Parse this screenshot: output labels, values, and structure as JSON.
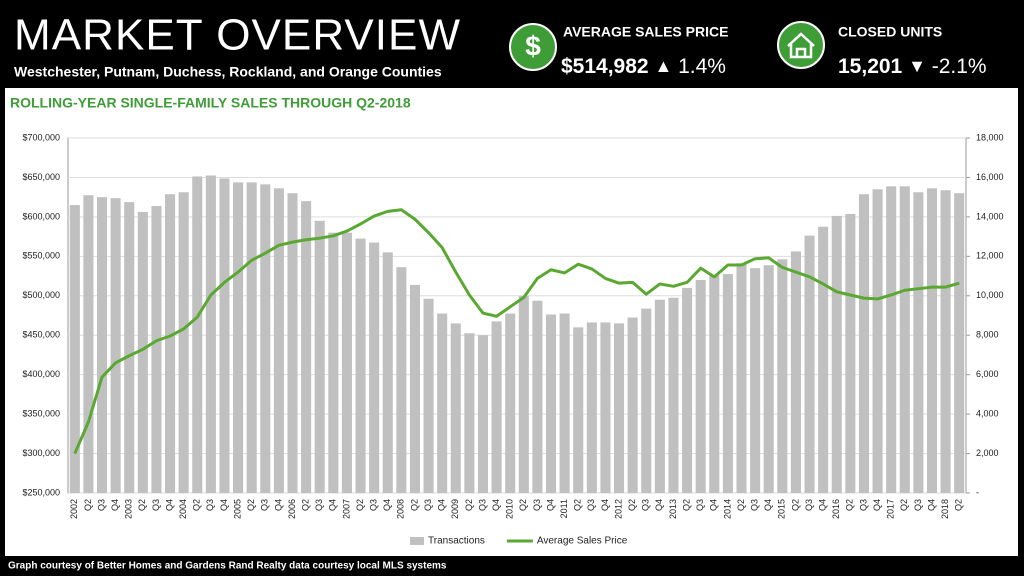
{
  "header": {
    "title": "MARKET OVERVIEW",
    "subtitle": "Westchester, Putnam, Duchess, Rockland, and Orange Counties",
    "stats": [
      {
        "icon": "$",
        "label": "AVERAGE SALES PRICE",
        "value": "$514,982",
        "arrow": "▲",
        "change": "1.4%"
      },
      {
        "label": "CLOSED UNITS",
        "value": "15,201",
        "arrow": "▼",
        "change": "-2.1%"
      }
    ]
  },
  "footer": "Graph courtesy of Better Homes and Gardens Rand Realty data courtesy local MLS systems",
  "chart_data": {
    "type": "bar",
    "title": "ROLLING-YEAR SINGLE-FAMILY SALES THROUGH Q2-2018",
    "categories": [
      "2002",
      "Q2",
      "Q3",
      "Q4",
      "2003",
      "Q2",
      "Q3",
      "Q4",
      "2004",
      "Q2",
      "Q3",
      "Q4",
      "2005",
      "Q2",
      "Q3",
      "Q4",
      "2006",
      "Q2",
      "Q3",
      "Q4",
      "2007",
      "Q2",
      "Q3",
      "Q4",
      "2008",
      "Q2",
      "Q3",
      "Q4",
      "2009",
      "Q2",
      "Q3",
      "Q4",
      "2010",
      "Q2",
      "Q3",
      "Q4",
      "2011",
      "Q2",
      "Q3",
      "Q4",
      "2012",
      "Q2",
      "Q3",
      "Q4",
      "2013",
      "Q2",
      "Q3",
      "Q4",
      "2014",
      "Q2",
      "Q3",
      "Q4",
      "2015",
      "Q2",
      "Q3",
      "Q4",
      "2016",
      "Q2",
      "Q3",
      "Q4",
      "2017",
      "Q2",
      "Q3",
      "Q4",
      "2018",
      "Q2"
    ],
    "series": [
      {
        "name": "Transactions",
        "type": "bar",
        "axis": "y2",
        "color": "#c0c0c0",
        "values": [
          14600,
          15100,
          15000,
          14950,
          14750,
          14250,
          14550,
          15150,
          15250,
          16050,
          16100,
          15950,
          15750,
          15750,
          15650,
          15450,
          15200,
          14800,
          13800,
          13200,
          13200,
          12900,
          12700,
          12200,
          11450,
          10550,
          9850,
          9100,
          8600,
          8100,
          8000,
          8700,
          9100,
          10000,
          9750,
          9050,
          9100,
          8400,
          8650,
          8650,
          8600,
          8900,
          9350,
          9800,
          9900,
          10400,
          10800,
          11050,
          11100,
          11650,
          11400,
          11550,
          11850,
          12250,
          13050,
          13500,
          14050,
          14150,
          15150,
          15400,
          15550,
          15550,
          15250,
          15450,
          15350,
          15200
        ]
      },
      {
        "name": "Average Sales Price",
        "type": "line",
        "color": "#5aa832",
        "values": [
          300000,
          340000,
          397000,
          415000,
          424000,
          432000,
          443000,
          449000,
          458000,
          473000,
          501000,
          517000,
          530000,
          545000,
          554000,
          564000,
          568000,
          571000,
          573000,
          576000,
          582000,
          591000,
          601000,
          607000,
          609000,
          597000,
          580000,
          561000,
          530000,
          501000,
          478000,
          474000,
          486000,
          498000,
          522000,
          533000,
          529000,
          540000,
          534000,
          522000,
          516000,
          517000,
          502000,
          515000,
          512000,
          517000,
          535000,
          524000,
          539000,
          539000,
          547000,
          548000,
          536000,
          530000,
          524000,
          515000,
          505000,
          501000,
          497000,
          496000,
          501000,
          507000,
          509000,
          511000,
          511000,
          516000
        ]
      }
    ],
    "ylim": [
      250000,
      700000
    ],
    "yticks": [
      {
        "value": 250000,
        "label": "$250,000"
      },
      {
        "value": 300000,
        "label": "$300,000"
      },
      {
        "value": 350000,
        "label": "$350,000"
      },
      {
        "value": 400000,
        "label": "$400,000"
      },
      {
        "value": 450000,
        "label": "$450,000"
      },
      {
        "value": 500000,
        "label": "$500,000"
      },
      {
        "value": 550000,
        "label": "$550,000"
      },
      {
        "value": 600000,
        "label": "$600,000"
      },
      {
        "value": 650000,
        "label": "$650,000"
      },
      {
        "value": 700000,
        "label": "$700,000"
      }
    ],
    "y2lim": [
      0,
      18000
    ],
    "y2ticks": [
      {
        "value": 0,
        "label": "-"
      },
      {
        "value": 2000,
        "label": "2,000"
      },
      {
        "value": 4000,
        "label": "4,000"
      },
      {
        "value": 6000,
        "label": "6,000"
      },
      {
        "value": 8000,
        "label": "8,000"
      },
      {
        "value": 10000,
        "label": "10,000"
      },
      {
        "value": 12000,
        "label": "12,000"
      },
      {
        "value": 14000,
        "label": "14,000"
      },
      {
        "value": 16000,
        "label": "16,000"
      },
      {
        "value": 18000,
        "label": "18,000"
      }
    ],
    "grid": true,
    "legend": "bottom"
  }
}
